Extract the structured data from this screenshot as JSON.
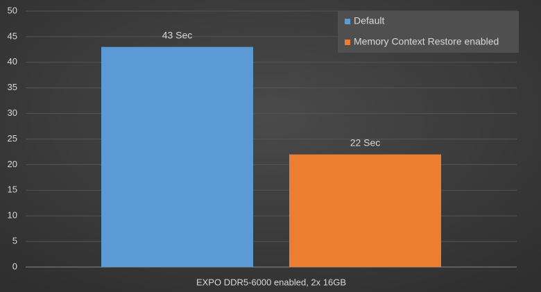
{
  "chart_data": {
    "type": "bar",
    "categories": [
      "EXPO DDR5-6000 enabled, 2x 16GB"
    ],
    "series": [
      {
        "name": "Default",
        "color": "#5b9bd5",
        "values": [
          43
        ],
        "value_labels": [
          "43 Sec"
        ]
      },
      {
        "name": "Memory Context Restore enabled",
        "color": "#ed7d31",
        "values": [
          22
        ],
        "value_labels": [
          "22 Sec"
        ]
      }
    ],
    "ylim": [
      0,
      50
    ],
    "yticks": [
      0,
      5,
      10,
      15,
      20,
      25,
      30,
      35,
      40,
      45,
      50
    ],
    "grid": true,
    "legend": "upper right"
  }
}
